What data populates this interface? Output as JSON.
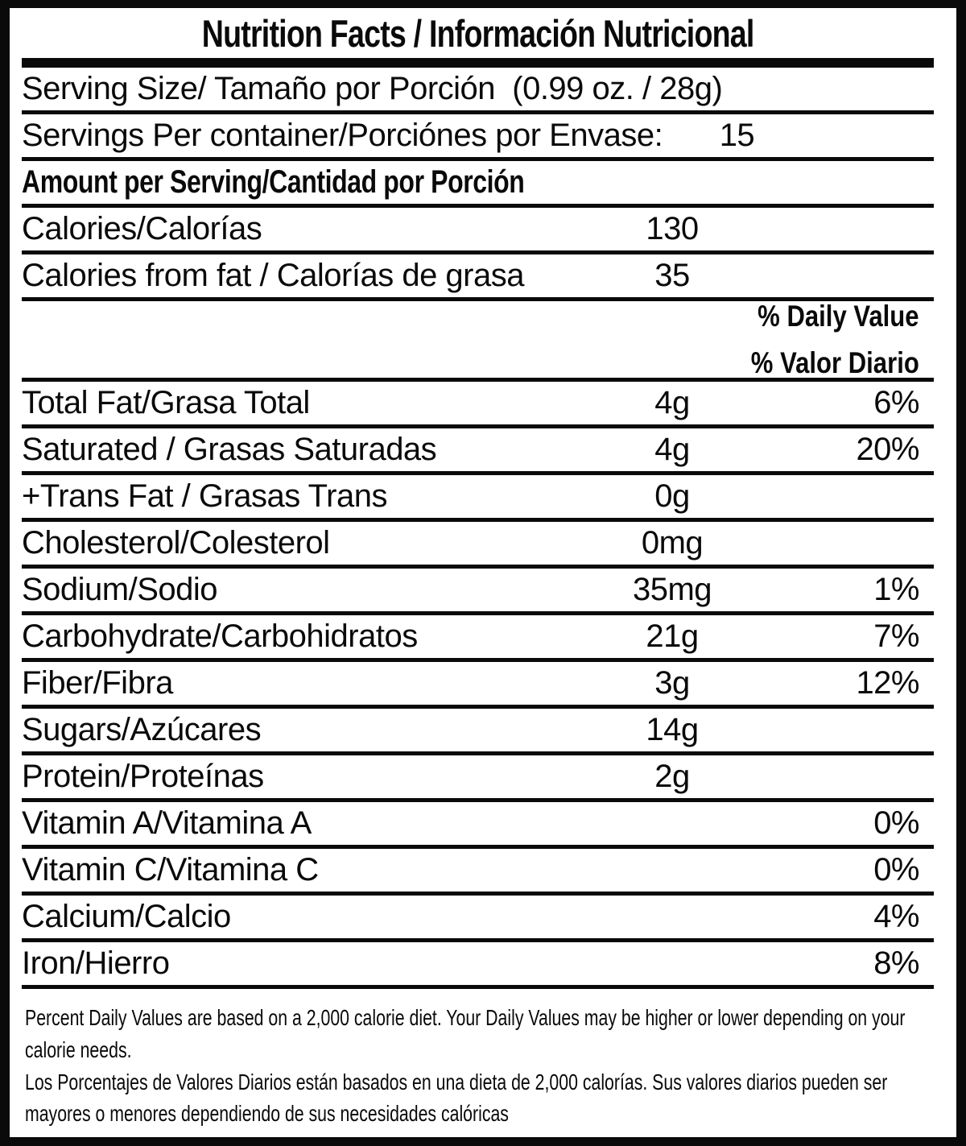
{
  "title": "Nutrition Facts / Información Nutricional",
  "colors": {
    "ink": "#0a0a0b",
    "background": "#ffffff"
  },
  "daily_value_header": {
    "en": "% Daily Value",
    "es": "% Valor Diario"
  },
  "rows": [
    {
      "label": "Serving Size/ Tamaño por Porción  (0.99 oz. / 28g)",
      "amount": "",
      "percent": ""
    },
    {
      "label": "Servings Per container/Porciónes por Envase:",
      "amount": "15",
      "percent": ""
    },
    {
      "label": "Amount per Serving/Cantidad por Porción",
      "amount": "",
      "percent": ""
    },
    {
      "label": "Calories/Calorías",
      "amount": "130",
      "percent": ""
    },
    {
      "label": "Calories from fat / Calorías de grasa",
      "amount": "35",
      "percent": ""
    },
    {
      "label": "Total Fat/Grasa Total",
      "amount": "4g",
      "percent": "6%"
    },
    {
      "label": "Saturated / Grasas Saturadas",
      "amount": "4g",
      "percent": "20%"
    },
    {
      "label": "+Trans Fat / Grasas Trans",
      "amount": "0g",
      "percent": ""
    },
    {
      "label": "Cholesterol/Colesterol",
      "amount": "0mg",
      "percent": ""
    },
    {
      "label": "Sodium/Sodio",
      "amount": "35mg",
      "percent": "1%"
    },
    {
      "label": "Carbohydrate/Carbohidratos",
      "amount": "21g",
      "percent": "7%"
    },
    {
      "label": "Fiber/Fibra",
      "amount": "3g",
      "percent": "12%"
    },
    {
      "label": "Sugars/Azúcares",
      "amount": "14g",
      "percent": ""
    },
    {
      "label": "Protein/Proteínas",
      "amount": "2g",
      "percent": ""
    },
    {
      "label": "Vitamin A/Vitamina A",
      "amount": "",
      "percent": "0%"
    },
    {
      "label": "Vitamin C/Vitamina C",
      "amount": "",
      "percent": "0%"
    },
    {
      "label": "Calcium/Calcio",
      "amount": "",
      "percent": "4%"
    },
    {
      "label": "Iron/Hierro",
      "amount": "",
      "percent": "8%"
    }
  ],
  "footnote": {
    "en": "Percent Daily Values are based on a 2,000 calorie diet. Your Daily Values may be higher or lower depending on your calorie needs.",
    "es": "Los Porcentajes de Valores Diarios están basados en una dieta de 2,000 calorías. Sus valores diarios pueden ser mayores o menores dependiendo de sus necesidades calóricas"
  }
}
